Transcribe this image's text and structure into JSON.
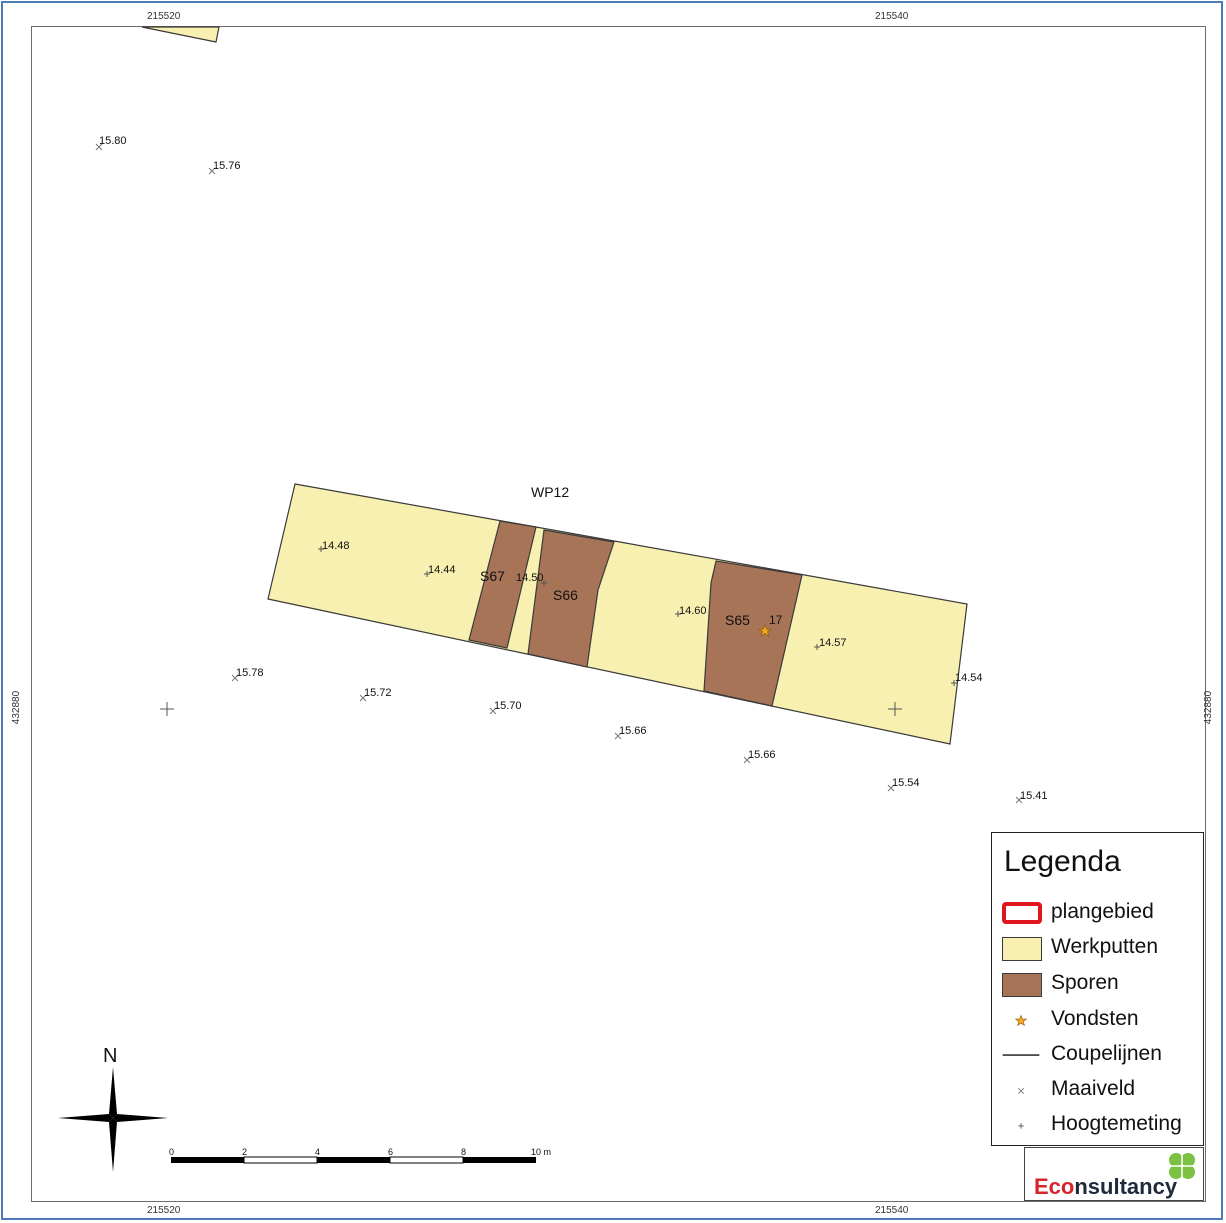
{
  "map": {
    "colors": {
      "werkputten": "#f8f0b0",
      "sporen": "#a87457",
      "outline": "#3a3a3a",
      "plangebied": "#e0151d",
      "vondst": "#f5a623",
      "marker": "#777777"
    },
    "grid": {
      "x_top_left": "215520",
      "x_top_right": "215540",
      "x_bottom_left": "215520",
      "x_bottom_right": "215540",
      "y_left": "432880",
      "y_right": "432880"
    },
    "labels": {
      "trench": "WP12",
      "s67": "S67",
      "s66": "S66",
      "s65": "S65",
      "find_number": "17"
    },
    "maaiveld_values": [
      "15.80",
      "15.76",
      "15.78",
      "15.72",
      "15.70",
      "15.66",
      "15.66",
      "15.54",
      "15.41"
    ],
    "hoogte_values": [
      "14.48",
      "14.44",
      "14.50",
      "14.60",
      "14.57",
      "14.54"
    ],
    "scale": {
      "ticks": [
        "0",
        "2",
        "4",
        "6",
        "8",
        "10 m"
      ]
    },
    "north": "N"
  },
  "legend": {
    "title": "Legenda",
    "items": [
      {
        "label": "plangebied",
        "icon": "outline-red-rect"
      },
      {
        "label": "Werkputten",
        "icon": "yellow-fill"
      },
      {
        "label": "Sporen",
        "icon": "brown-fill"
      },
      {
        "label": "Vondsten",
        "icon": "orange-star"
      },
      {
        "label": "Coupelijnen",
        "icon": "black-line"
      },
      {
        "label": "Maaiveld",
        "icon": "grey-x"
      },
      {
        "label": "Hoogtemeting",
        "icon": "grey-plus"
      }
    ]
  },
  "logo": {
    "brand_prefix": "Eco",
    "brand_suffix": "nsultancy",
    "icon": "four-leaf-clover-icon"
  }
}
